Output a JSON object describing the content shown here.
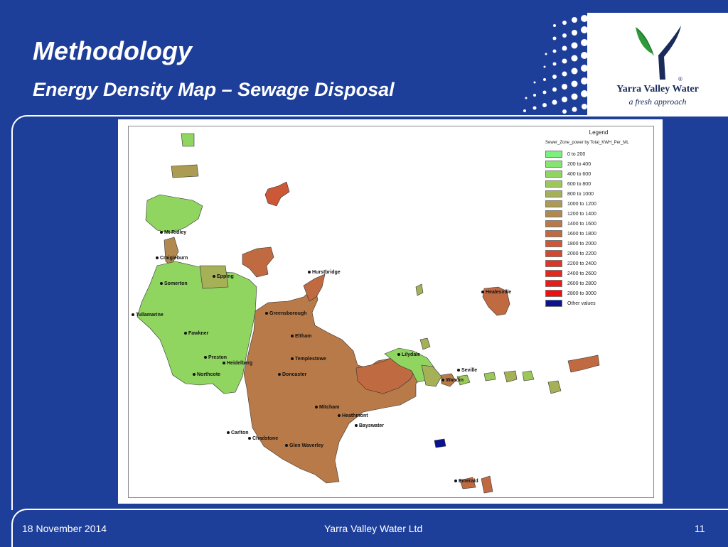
{
  "slide": {
    "title": "Methodology",
    "subtitle": "Energy Density Map – Sewage Disposal"
  },
  "logo": {
    "name": "Yarra Valley Water",
    "tagline": "a fresh approach",
    "mark": "®"
  },
  "map": {
    "legend_title": "Legend",
    "legend_subtitle": "Sewer_Zone_power by Total_KWH_Per_ML",
    "legend_items": [
      {
        "label": "0  to  200",
        "color": "#7cf07c"
      },
      {
        "label": "200  to  400",
        "color": "#86e56e"
      },
      {
        "label": "400  to  600",
        "color": "#90d560"
      },
      {
        "label": "600  to  800",
        "color": "#9cc85a"
      },
      {
        "label": "800  to  1000",
        "color": "#a6b057"
      },
      {
        "label": "1000  to  1200",
        "color": "#ac9b52"
      },
      {
        "label": "1200  to  1400",
        "color": "#b08850"
      },
      {
        "label": "1400  to  1600",
        "color": "#b87a48"
      },
      {
        "label": "1600  to  1800",
        "color": "#c06a42"
      },
      {
        "label": "1800  to  2000",
        "color": "#cc5838"
      },
      {
        "label": "2000  to  2200",
        "color": "#d44830"
      },
      {
        "label": "2200  to  2400",
        "color": "#dc3626"
      },
      {
        "label": "2400  to  2600",
        "color": "#e4281e"
      },
      {
        "label": "2600  to  2800",
        "color": "#ec1a16"
      },
      {
        "label": "2800  to  3000",
        "color": "#f20e10"
      },
      {
        "label": "Other values",
        "color": "#0a1490"
      }
    ],
    "places": [
      "Mt Ridley",
      "Craigieburn",
      "Epping",
      "Hurstbridge",
      "Greensborough",
      "Somerton",
      "Tullamarine",
      "Fawkner",
      "Eltham",
      "Preston",
      "Heidelberg",
      "Northcote",
      "Templestowe",
      "Lilydale",
      "Healesville",
      "Seville",
      "Wandin",
      "Doncaster",
      "Mitcham",
      "Heathmont",
      "Bayswater",
      "Carlton",
      "Chadstone",
      "Glen Waverley",
      "Emerald"
    ]
  },
  "footer": {
    "date": "18 November 2014",
    "company": "Yarra Valley Water Ltd",
    "page": "11"
  }
}
